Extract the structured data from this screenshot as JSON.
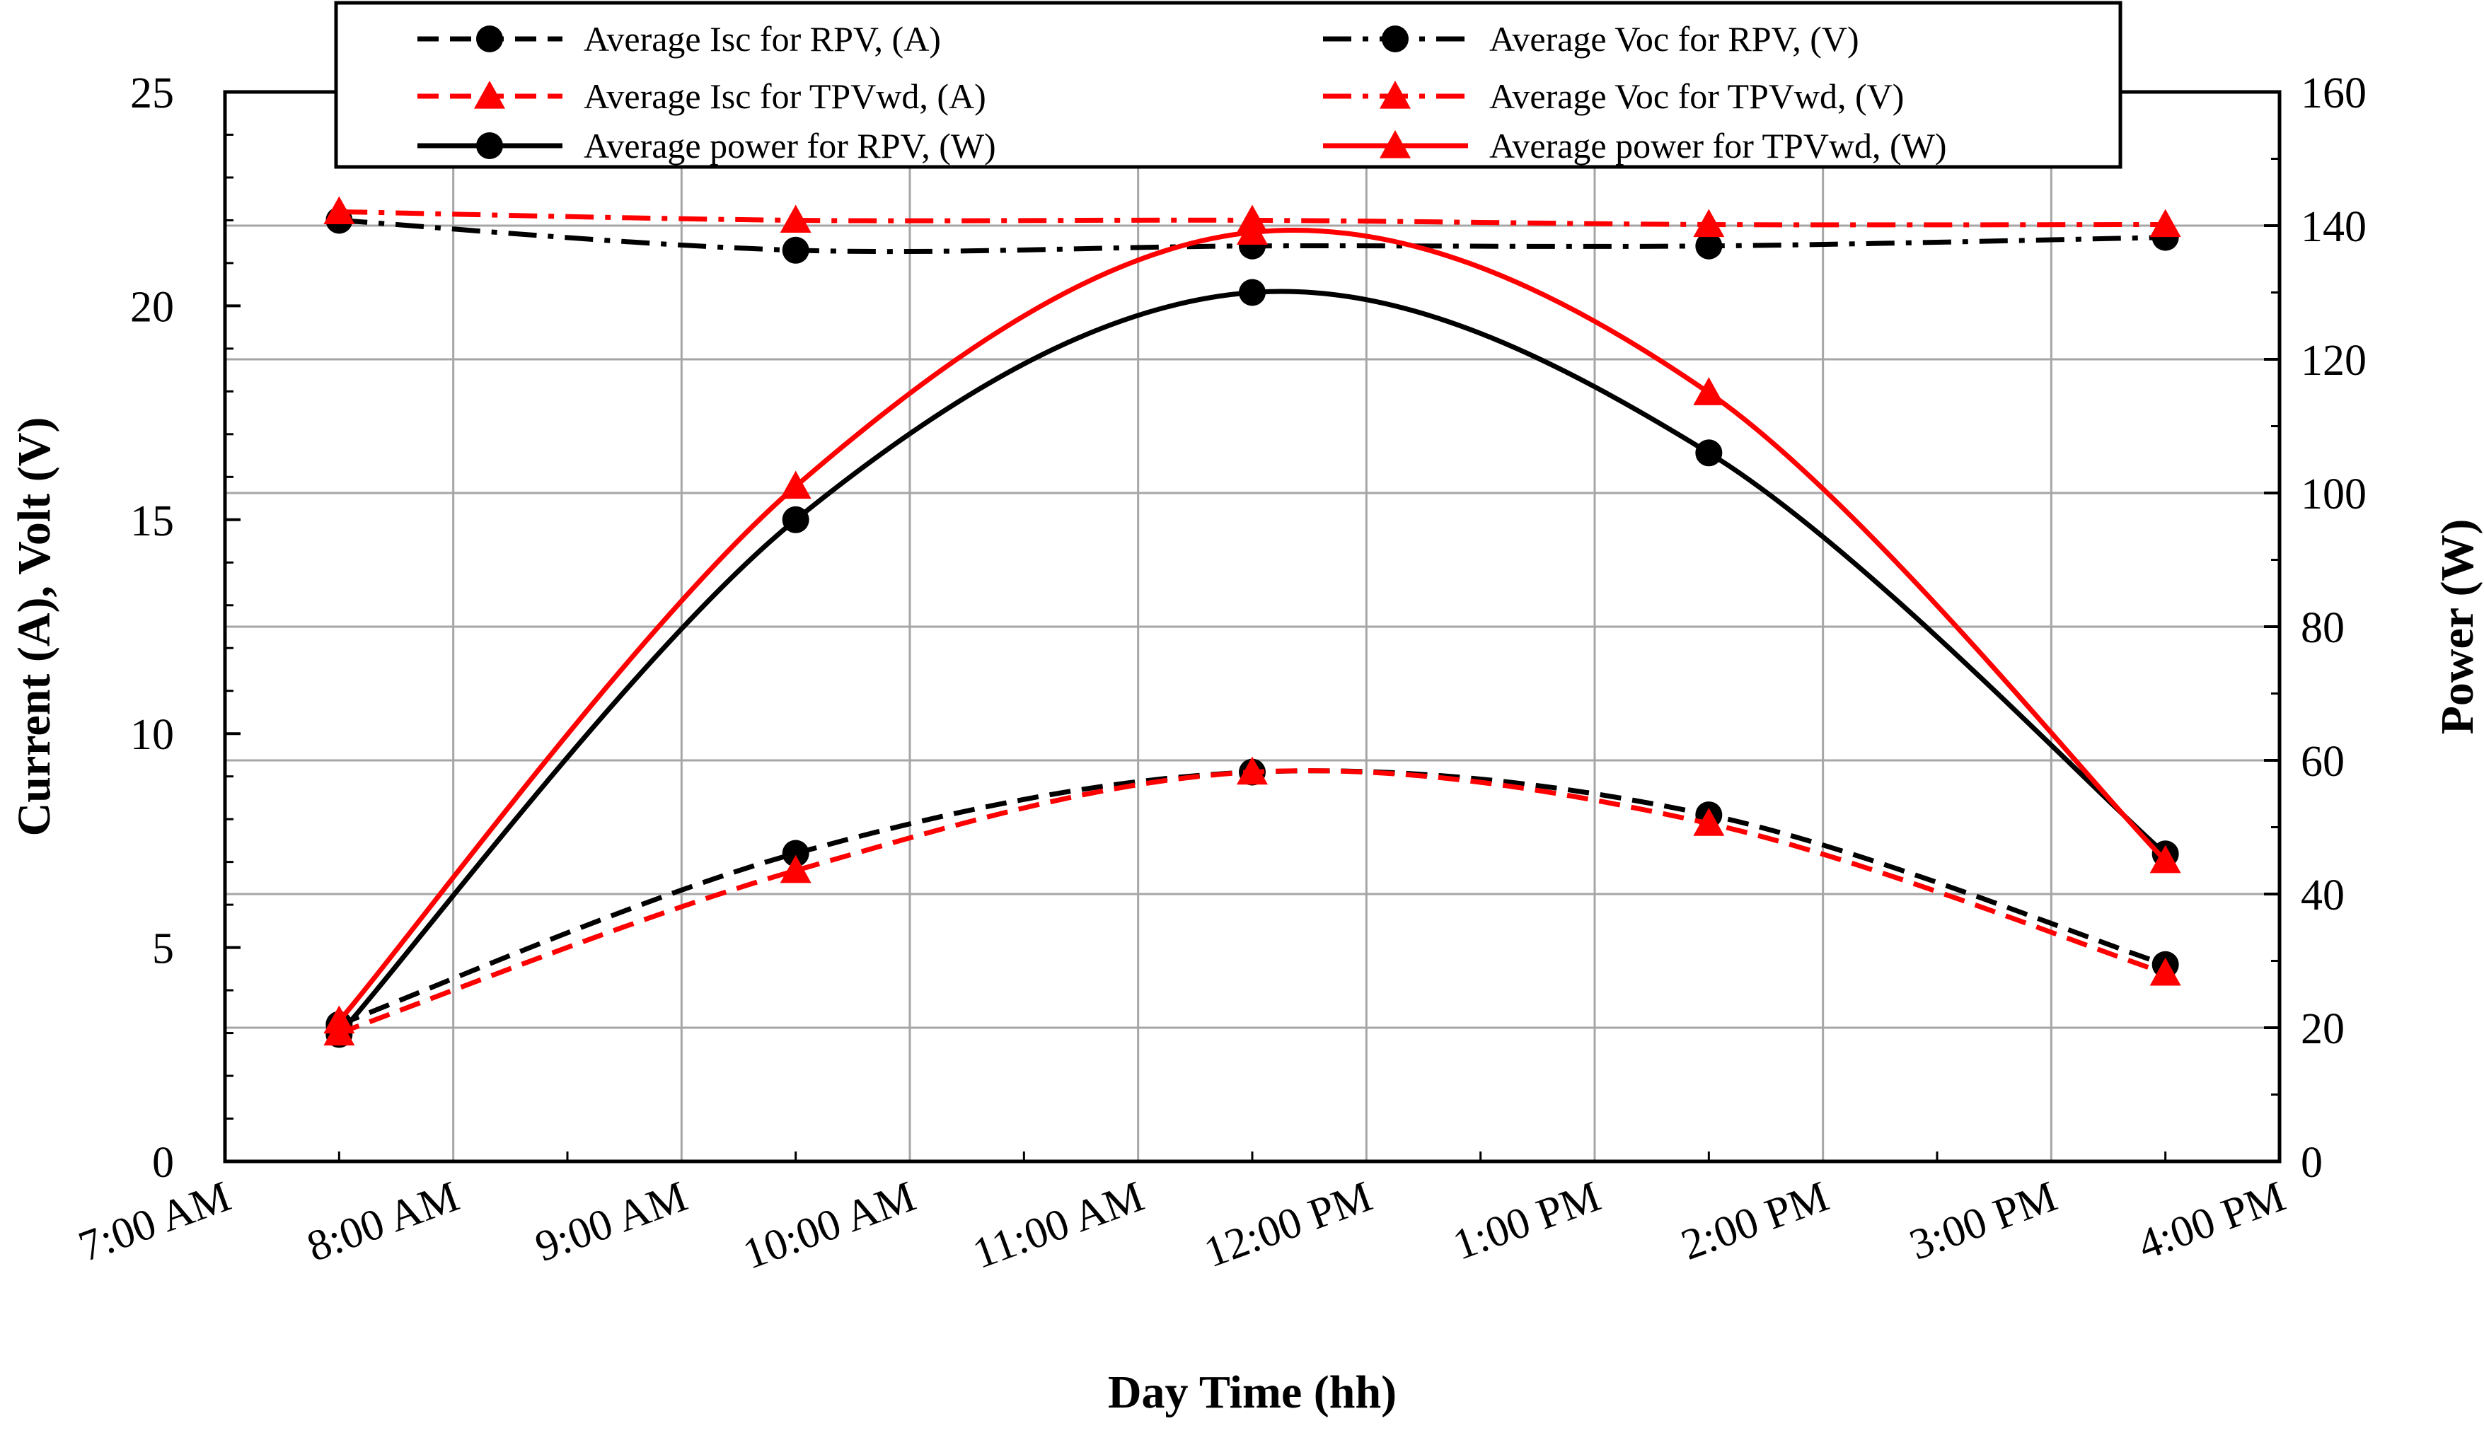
{
  "chart_data": {
    "type": "line",
    "x_categories": [
      "7:00 AM",
      "8:00 AM",
      "9:00 AM",
      "10:00 AM",
      "11:00 AM",
      "12:00 PM",
      "1:00 PM",
      "2:00 PM",
      "3:00 PM",
      "4:00 PM"
    ],
    "xlabel": "Day Time (hh)",
    "ylabel_left": "Current  (A), Volt (V)",
    "ylabel_right": "Power (W)",
    "ylim_left": [
      0,
      25
    ],
    "yticks_left": [
      0,
      5,
      10,
      15,
      20,
      25
    ],
    "ylim_right": [
      0,
      160
    ],
    "yticks_right": [
      0,
      20,
      40,
      60,
      80,
      100,
      120,
      140,
      160
    ],
    "grid": true,
    "legend_position": "top",
    "series": [
      {
        "name": "Average Isc for RPV, (A)",
        "axis": "left",
        "color": "#000000",
        "line": "dashed",
        "marker": "circle",
        "x": [
          7.5,
          9.5,
          11.5,
          13.5,
          15.5
        ],
        "y": [
          3.2,
          7.2,
          9.1,
          8.1,
          4.6
        ]
      },
      {
        "name": "Average Voc for RPV,  (V)",
        "axis": "left",
        "color": "#000000",
        "line": "dashdot",
        "marker": "circle",
        "x": [
          7.5,
          9.5,
          11.5,
          13.5,
          15.5
        ],
        "y": [
          22.0,
          21.3,
          21.4,
          21.4,
          21.6
        ]
      },
      {
        "name": "Average Isc for TPVwd, (A)",
        "axis": "left",
        "color": "#ff0000",
        "line": "dashed",
        "marker": "triangle",
        "x": [
          7.5,
          9.5,
          11.5,
          13.5,
          15.5
        ],
        "y": [
          3.0,
          6.8,
          9.1,
          7.9,
          4.4
        ]
      },
      {
        "name": "Average Voc for TPVwd, (V)",
        "axis": "left",
        "color": "#ff0000",
        "line": "dashdot",
        "marker": "triangle",
        "x": [
          7.5,
          9.5,
          11.5,
          13.5,
          15.5
        ],
        "y": [
          22.2,
          22.0,
          22.0,
          21.9,
          21.9
        ]
      },
      {
        "name": "Average power for RPV, (W)",
        "axis": "right",
        "color": "#000000",
        "line": "solid",
        "marker": "circle",
        "x": [
          7.5,
          9.5,
          11.5,
          13.5,
          15.5
        ],
        "y": [
          19,
          96,
          130,
          106,
          46
        ]
      },
      {
        "name": "Average power for TPVwd, (W)",
        "axis": "right",
        "color": "#ff0000",
        "line": "solid",
        "marker": "triangle",
        "x": [
          7.5,
          9.5,
          11.5,
          13.5,
          15.5
        ],
        "y": [
          21,
          101,
          139,
          115,
          45
        ]
      }
    ]
  }
}
